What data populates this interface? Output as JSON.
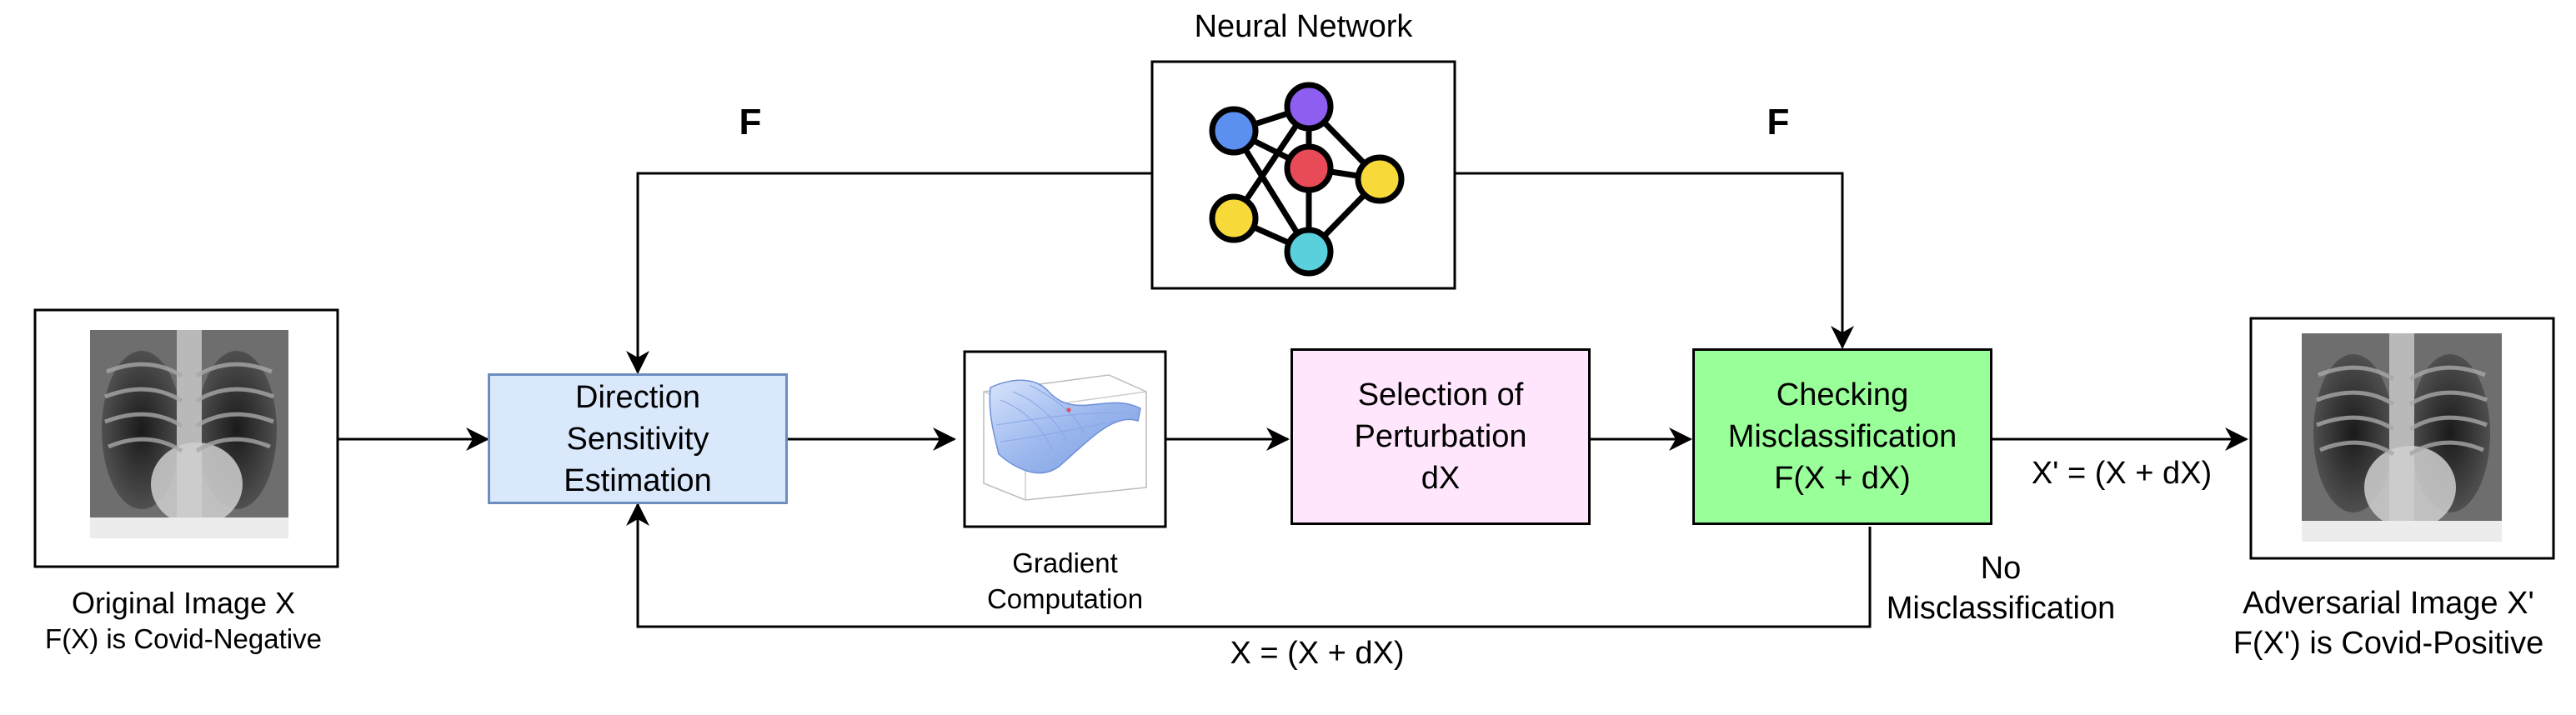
{
  "nodes": {
    "neural_network": {
      "title": "Neural Network"
    },
    "direction": {
      "lines": [
        "Direction",
        "Sensitivity",
        "Estimation"
      ],
      "fill": "#dae8fc",
      "stroke": "#6c8ebf"
    },
    "gradient": {
      "lines": [
        "Gradient",
        "Computation"
      ]
    },
    "perturbation": {
      "lines": [
        "Selection of",
        "Perturbation",
        "dX"
      ],
      "fill": "#ffe6fc",
      "stroke": "#000000"
    },
    "checking": {
      "lines": [
        "Checking",
        "Misclassification",
        "F(X + dX)"
      ],
      "fill": "#99ff99",
      "stroke": "#000000"
    },
    "original": {
      "lines": [
        "Original Image X",
        "F(X) is Covid-Negative"
      ]
    },
    "adversarial": {
      "lines": [
        "Adversarial Image X'",
        "F(X') is Covid-Positive"
      ]
    }
  },
  "edges": {
    "f_left": "F",
    "f_right": "F",
    "output": "X' = (X + dX)",
    "no_misclassification": [
      "No",
      "Misclassification"
    ],
    "feedback": "X = (X + dX)"
  },
  "network_colors": {
    "blue": "#5b8ff0",
    "purple": "#8d5ef0",
    "red": "#e84a57",
    "yellow": "#f7d93a",
    "cyan": "#5ad0dc"
  }
}
